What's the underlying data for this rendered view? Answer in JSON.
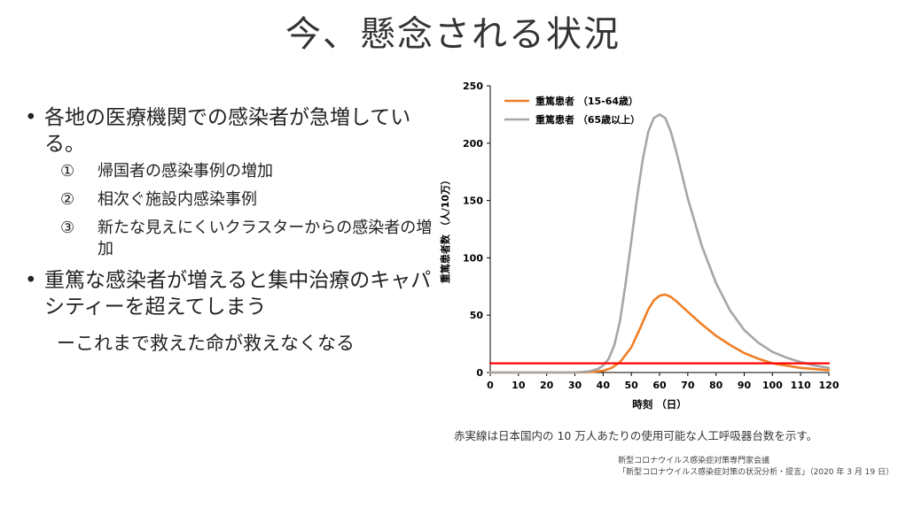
{
  "title": "今、懸念される状況",
  "bullets": [
    {
      "dot": "•",
      "text": "各地の医療機関での感染者が急増している。",
      "subitems": [
        {
          "num": "①",
          "text": "帰国者の感染事例の増加"
        },
        {
          "num": "②",
          "text": "相次ぐ施設内感染事例"
        },
        {
          "num": "③",
          "text": "新たな見えにくいクラスターからの感染者の増加"
        }
      ]
    },
    {
      "dot": "•",
      "text": "重篤な感染者が増えると集中治療のキャパシティーを超えてしまう"
    }
  ],
  "tagline": "ーこれまで救えた命が救えなくなる",
  "note": "赤実線は日本国内の 10 万人あたりの使用可能な人工呼吸器台数を示す。",
  "source": {
    "line1": "新型コロナウイルス感染症対策専門家会議",
    "line2": "「新型コロナウイルス感染症対策の状況分析・提言」（2020 年 3 月 19 日）"
  },
  "chart_data": {
    "type": "line",
    "title": "",
    "xlabel": "時刻 （日）",
    "ylabel": "重篤患者数 （人/10万）",
    "xlim": [
      0,
      120
    ],
    "ylim": [
      0,
      250
    ],
    "xticks": [
      0,
      10,
      20,
      30,
      40,
      50,
      60,
      70,
      80,
      90,
      100,
      110,
      120
    ],
    "yticks": [
      0,
      50,
      100,
      150,
      200,
      250
    ],
    "legend_position": "top-left",
    "series": [
      {
        "name": "重篤患者 （15-64歳）",
        "color": "#f07f25",
        "x": [
          0,
          30,
          35,
          40,
          43,
          46,
          50,
          53,
          56,
          58,
          60,
          62,
          64,
          66,
          70,
          75,
          80,
          85,
          90,
          95,
          100,
          105,
          110,
          115,
          120
        ],
        "y": [
          0,
          0,
          0.3,
          1.5,
          4,
          9,
          22,
          38,
          55,
          63,
          67,
          68,
          66,
          62,
          53,
          42,
          32,
          24,
          17,
          12,
          8,
          6,
          4,
          3,
          2
        ]
      },
      {
        "name": "重篤患者 （65歳以上）",
        "color": "#a6a6a6",
        "x": [
          0,
          30,
          35,
          38,
          40,
          42,
          44,
          46,
          48,
          50,
          52,
          54,
          56,
          58,
          60,
          62,
          64,
          66,
          68,
          70,
          75,
          80,
          85,
          90,
          95,
          100,
          105,
          110,
          115,
          120
        ],
        "y": [
          0,
          0,
          1,
          3,
          6,
          12,
          24,
          45,
          78,
          115,
          152,
          185,
          210,
          222,
          225,
          222,
          210,
          192,
          172,
          152,
          110,
          78,
          54,
          37,
          26,
          18,
          13,
          9,
          6,
          4
        ]
      },
      {
        "name": "人工呼吸器台数",
        "color": "#ff0000",
        "x": [
          0,
          120
        ],
        "y": [
          8,
          8
        ]
      }
    ]
  }
}
